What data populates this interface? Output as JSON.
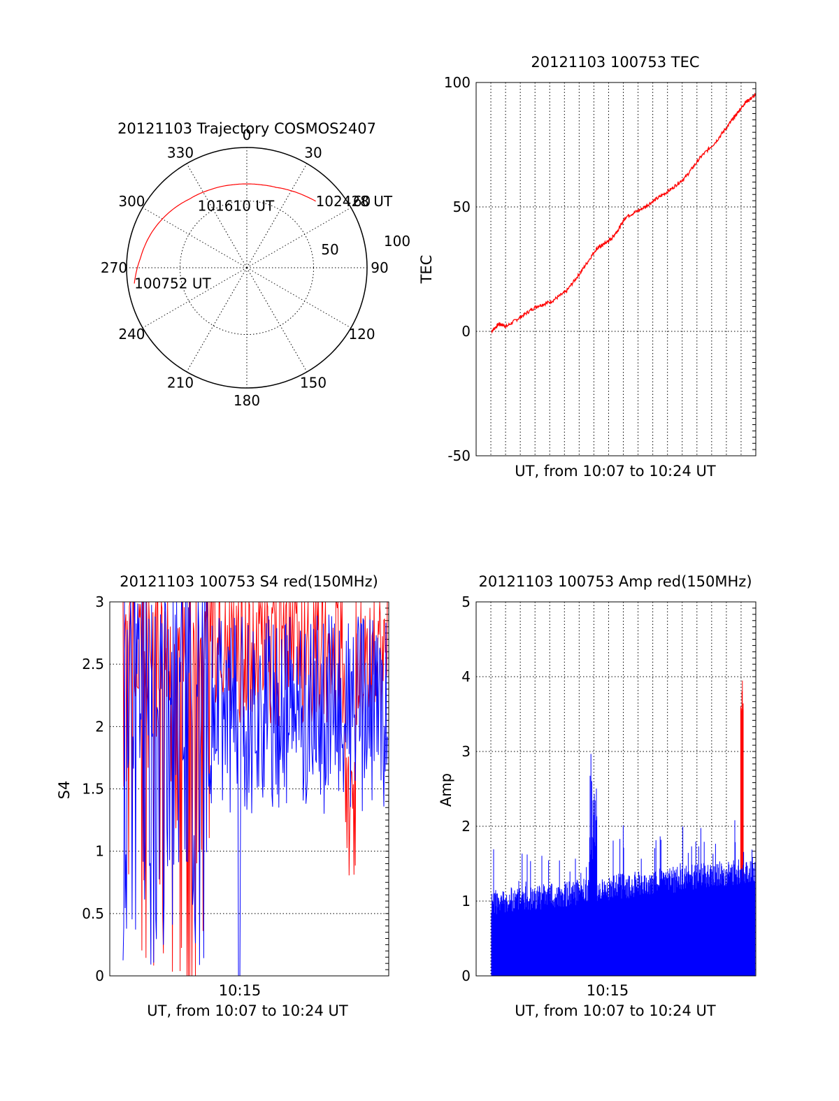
{
  "chart_data": [
    {
      "type": "polar",
      "title": "20121103 Trajectory COSMOS2407",
      "angle_labels": [
        "0",
        "30",
        "60",
        "90",
        "120",
        "150",
        "180",
        "210",
        "240",
        "270",
        "300",
        "330"
      ],
      "angles_deg": [
        0,
        30,
        60,
        90,
        120,
        150,
        180,
        210,
        240,
        270,
        300,
        330
      ],
      "radial_labels": [
        "50",
        "100"
      ],
      "radial_values": [
        50,
        100
      ],
      "grid": true,
      "series_color": "#ff0000",
      "trajectory": {
        "azimuth_deg": [
          262,
          275,
          290,
          305,
          320,
          335,
          350,
          0,
          10,
          20,
          30,
          40,
          46
        ],
        "zenith_deg": [
          85,
          80,
          76,
          71.5,
          67,
          64.5,
          63,
          62.7,
          63,
          64,
          66.5,
          69.5,
          71.7
        ]
      },
      "annotations": [
        {
          "text": "100752 UT",
          "azimuth_deg": 262,
          "zenith_deg": 85
        },
        {
          "text": "101610 UT",
          "azimuth_deg": 350,
          "zenith_deg": 47
        },
        {
          "text": "102428 UT",
          "azimuth_deg": 46,
          "zenith_deg": 71.7
        }
      ]
    },
    {
      "type": "line",
      "title": "20121103 100753 TEC",
      "xlabel": "UT, from 10:07 to 10:24 UT",
      "ylabel": "TEC",
      "xlim": [
        0,
        17.7
      ],
      "ylim": [
        -50,
        100
      ],
      "yticks": [
        -50,
        0,
        50,
        100
      ],
      "grid": true,
      "series_color": "#ff0000",
      "x": [
        0,
        0.5,
        1,
        2,
        3,
        4,
        5,
        6,
        7,
        7.5,
        8,
        8.5,
        9,
        10,
        11,
        12,
        13,
        14,
        15,
        16,
        16.5,
        17,
        17.7
      ],
      "y": [
        0,
        3,
        2,
        6,
        10,
        12,
        16,
        24,
        33,
        35,
        37,
        41,
        46,
        49,
        53,
        57,
        62,
        70,
        76,
        84,
        88,
        92,
        95
      ]
    },
    {
      "type": "line",
      "title": "20121103 100753 S4 red(150MHz)",
      "xlabel": "UT, from 10:07 to 10:24 UT",
      "ylabel": "S4",
      "xlim": [
        10.117,
        10.4
      ],
      "ylim": [
        0,
        3
      ],
      "yticks": [
        0,
        0.5,
        1,
        1.5,
        2,
        2.5,
        3
      ],
      "ytick_labels": [
        "0",
        "0.5",
        "1",
        "1.5",
        "2",
        "2.5",
        "3"
      ],
      "xtick_labels": [
        "10:15"
      ],
      "grid": true,
      "series_colors": [
        "#ff0000",
        "#0000ff"
      ]
    },
    {
      "type": "bar",
      "title": "20121103 100753 Amp red(150MHz)",
      "xlabel": "UT, from 10:07 to 10:24 UT",
      "ylabel": "Amp",
      "xlim": [
        10.117,
        10.4
      ],
      "ylim": [
        0,
        5
      ],
      "yticks": [
        0,
        1,
        2,
        3,
        4,
        5
      ],
      "xtick_labels": [
        "10:15"
      ],
      "grid": true,
      "series_colors": [
        "#ff0000",
        "#0000ff"
      ]
    }
  ]
}
